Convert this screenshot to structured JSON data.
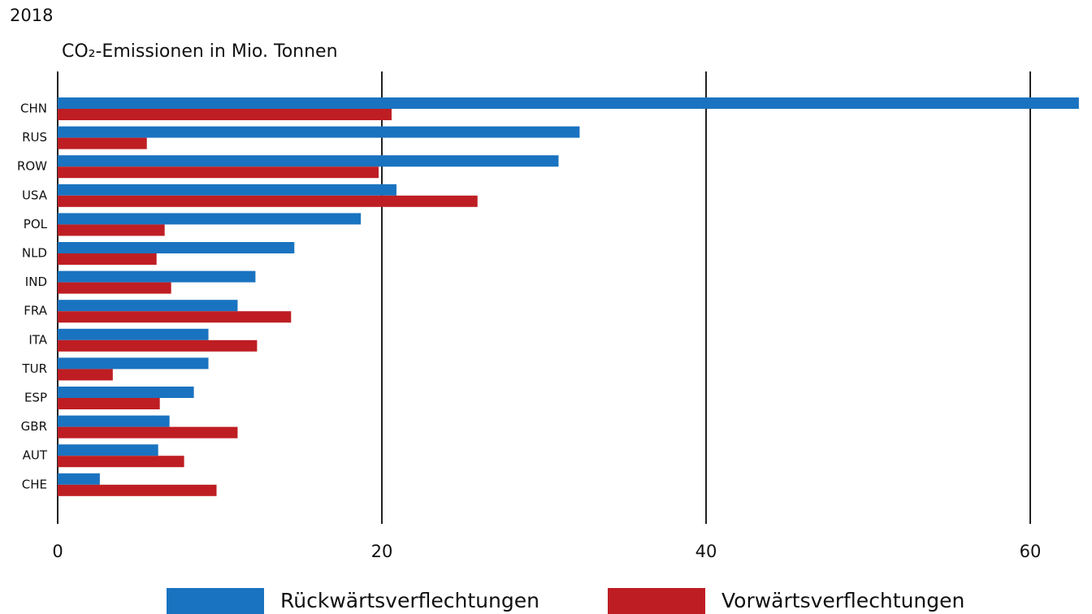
{
  "chart_data": {
    "type": "bar",
    "orientation": "horizontal",
    "title": "2018",
    "xlabel": "CO₂-Emissionen in Mio. Tonnen",
    "categories": [
      "CHN",
      "RUS",
      "ROW",
      "USA",
      "POL",
      "NLD",
      "IND",
      "FRA",
      "ITA",
      "TUR",
      "ESP",
      "GBR",
      "AUT",
      "CHE"
    ],
    "series": [
      {
        "name": "Rückwärtsverflechtungen",
        "color": "#1a73c0",
        "values": [
          63.0,
          32.2,
          30.9,
          20.9,
          18.7,
          14.6,
          12.2,
          11.1,
          9.3,
          9.3,
          8.4,
          6.9,
          6.2,
          2.6
        ]
      },
      {
        "name": "Vorwärtsverflechtungen",
        "color": "#be1e23",
        "values": [
          20.6,
          5.5,
          19.8,
          25.9,
          6.6,
          6.1,
          7.0,
          14.4,
          12.3,
          3.4,
          6.3,
          11.1,
          7.8,
          9.8
        ]
      }
    ],
    "xlim": [
      0,
      63.2
    ],
    "xticks": [
      0,
      20,
      40,
      60
    ],
    "grid": true,
    "legend": "bottom"
  }
}
